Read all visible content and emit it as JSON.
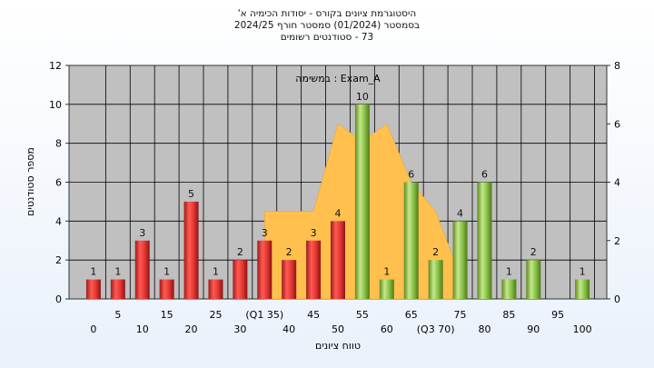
{
  "chart_data": {
    "type": "bar",
    "title_lines": [
      "היסטוגרמת ציונים בקורס - יסודות הכימיה א'",
      "בסמסטר  (01/2024)  סמסטר חורף 2024/25",
      "73 - סטודנטים רשומים"
    ],
    "ylabel": "מספר סטודנטים",
    "xlabel": "טווח ציונים",
    "legend": "Exam_A : במשימה",
    "ylim": [
      0,
      12
    ],
    "yticks": [
      0,
      2,
      4,
      6,
      8,
      10,
      12
    ],
    "y2lim": [
      0,
      8
    ],
    "y2ticks": [
      0,
      2,
      4,
      6,
      8
    ],
    "grid": true,
    "x_ticks_upper": [
      "5",
      "15",
      "25",
      "(Q1 35)",
      "45",
      "55",
      "65",
      "75",
      "85",
      "95"
    ],
    "x_ticks_lower": [
      "0",
      "10",
      "20",
      "30",
      "40",
      "50",
      "60",
      "(Q3 70)",
      "80",
      "90",
      "100"
    ],
    "bars": [
      {
        "x": 0,
        "value": 1,
        "label": "1",
        "color": "red"
      },
      {
        "x": 5,
        "value": 1,
        "label": "1",
        "color": "red"
      },
      {
        "x": 10,
        "value": 3,
        "label": "3",
        "color": "red"
      },
      {
        "x": 15,
        "value": 1,
        "label": "1",
        "color": "red"
      },
      {
        "x": 20,
        "value": 5,
        "label": "5",
        "color": "red"
      },
      {
        "x": 25,
        "value": 1,
        "label": "1",
        "color": "red"
      },
      {
        "x": 30,
        "value": 2,
        "label": "2",
        "color": "red"
      },
      {
        "x": 35,
        "value": 3,
        "label": "3",
        "color": "red"
      },
      {
        "x": 40,
        "value": 2,
        "label": "2",
        "color": "red"
      },
      {
        "x": 45,
        "value": 3,
        "label": "3",
        "color": "red"
      },
      {
        "x": 50,
        "value": 4,
        "label": "4",
        "color": "red"
      },
      {
        "x": 55,
        "value": 10,
        "label": "10",
        "color": "green"
      },
      {
        "x": 60,
        "value": 1,
        "label": "1",
        "color": "green"
      },
      {
        "x": 65,
        "value": 6,
        "label": "6",
        "color": "green"
      },
      {
        "x": 70,
        "value": 2,
        "label": "2",
        "color": "green"
      },
      {
        "x": 75,
        "value": 4,
        "label": "4",
        "color": "green"
      },
      {
        "x": 80,
        "value": 6,
        "label": "6",
        "color": "green"
      },
      {
        "x": 85,
        "value": 1,
        "label": "1",
        "color": "green"
      },
      {
        "x": 90,
        "value": 2,
        "label": "2",
        "color": "green"
      },
      {
        "x": 100,
        "value": 1,
        "label": "1",
        "color": "green"
      }
    ],
    "area_series": {
      "axis": "secondary",
      "points": [
        [
          35,
          0
        ],
        [
          35,
          3
        ],
        [
          45,
          3
        ],
        [
          50,
          6
        ],
        [
          55,
          5.4
        ],
        [
          60,
          6
        ],
        [
          65,
          4
        ],
        [
          70,
          3
        ],
        [
          75,
          0.8
        ],
        [
          75,
          0
        ]
      ]
    },
    "colors": {
      "plot_bg": "#c0c0c0",
      "red_bar": "#e53935",
      "green_bar": "#8bc34a",
      "area": "#ffc04d",
      "grid": "#000000"
    }
  }
}
